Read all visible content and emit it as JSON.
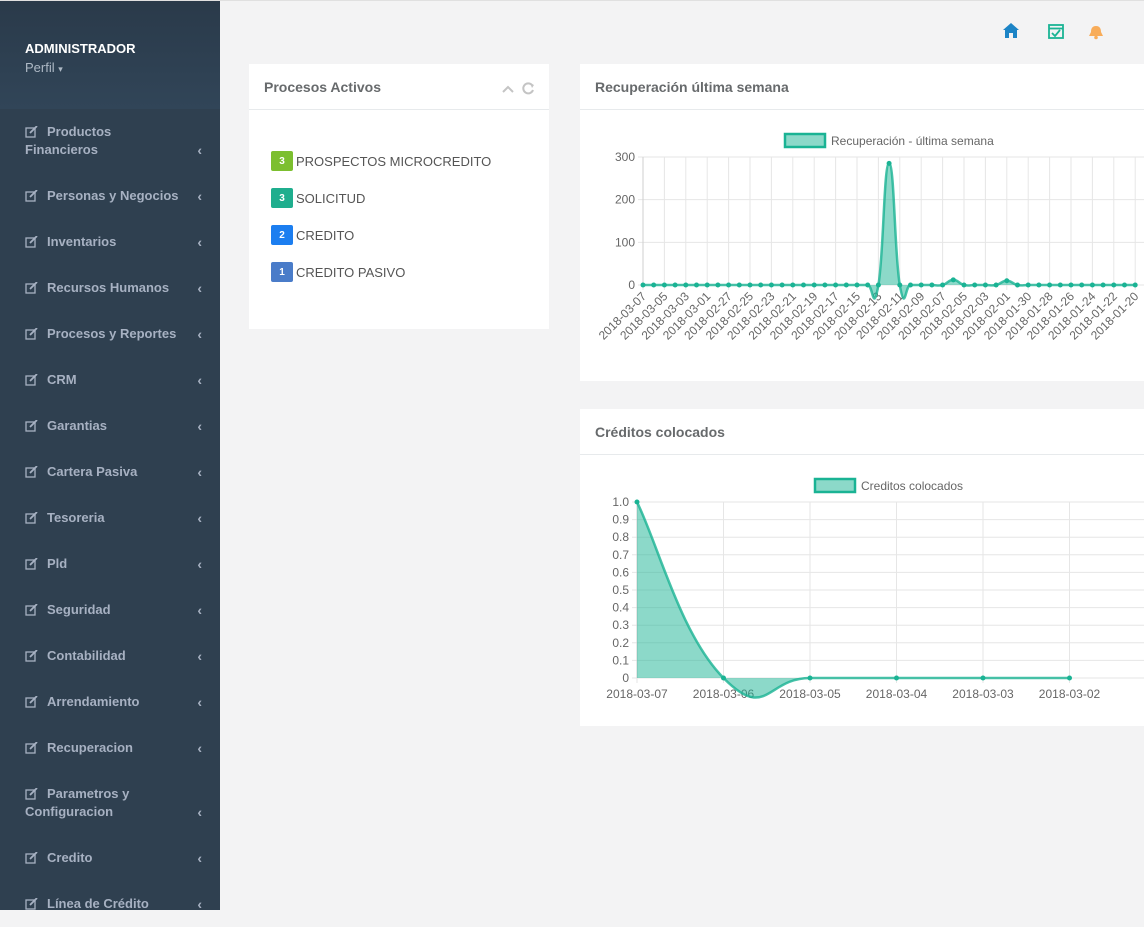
{
  "sidebar": {
    "user": "ADMINISTRADOR",
    "profile": "Perfil",
    "menu": [
      "Productos Financieros",
      "Personas y Negocios",
      "Inventarios",
      "Recursos Humanos",
      "Procesos y Reportes",
      "CRM",
      "Garantias",
      "Cartera Pasiva",
      "Tesoreria",
      "Pld",
      "Seguridad",
      "Contabilidad",
      "Arrendamiento",
      "Recuperacion",
      "Parametros y Configuracion",
      "Credito",
      "Línea de Crédito"
    ]
  },
  "processes": {
    "title": "Procesos Activos",
    "items": [
      {
        "count": 3,
        "label": "PROSPECTOS MICROCREDITO",
        "color": "#7cbf2f"
      },
      {
        "count": 3,
        "label": "SOLICITUD",
        "color": "#1fae8e"
      },
      {
        "count": 2,
        "label": "CREDITO",
        "color": "#1c7ef0"
      },
      {
        "count": 1,
        "label": "CREDITO PASIVO",
        "color": "#4a7cc9"
      }
    ]
  },
  "chart_data": [
    {
      "type": "area",
      "title": "Recuperación última semana",
      "categories": [
        "2018-03-07",
        null,
        "2018-03-05",
        null,
        "2018-03-03",
        null,
        "2018-03-01",
        null,
        "2018-02-27",
        null,
        "2018-02-25",
        null,
        "2018-02-23",
        null,
        "2018-02-21",
        null,
        "2018-02-19",
        null,
        "2018-02-17",
        null,
        "2018-02-15",
        null,
        "2018-02-13",
        null,
        "2018-02-11",
        null,
        "2018-02-09",
        null,
        "2018-02-07",
        null,
        "2018-02-05",
        null,
        "2018-02-03",
        null,
        "2018-02-01",
        null,
        "2018-01-30",
        null,
        "2018-01-28",
        null,
        "2018-01-26",
        null,
        "2018-01-24",
        null,
        "2018-01-22",
        null,
        "2018-01-20"
      ],
      "series": [
        {
          "name": "Recuperación - última semana",
          "color": "#1ab394",
          "values": [
            0,
            0,
            0,
            0,
            0,
            0,
            0,
            0,
            0,
            0,
            0,
            0,
            0,
            0,
            0,
            0,
            0,
            0,
            0,
            0,
            0,
            0,
            0,
            285,
            0,
            0,
            0,
            0,
            0,
            12,
            0,
            0,
            0,
            0,
            10,
            0,
            0,
            0,
            0,
            0,
            0,
            0,
            0,
            0,
            0,
            0,
            0
          ]
        }
      ],
      "ylim": [
        0,
        300
      ],
      "yticks": [
        0,
        100,
        200,
        300
      ],
      "grid": true,
      "legend": "top"
    },
    {
      "type": "area",
      "title": "Créditos colocados",
      "categories": [
        "2018-03-07",
        "2018-03-06",
        "2018-03-05",
        "2018-03-04",
        "2018-03-03",
        "2018-03-02"
      ],
      "series": [
        {
          "name": "Creditos colocados",
          "color": "#1ab394",
          "values": [
            1,
            0,
            0,
            0,
            0,
            0
          ]
        }
      ],
      "ylim": [
        0,
        1
      ],
      "yticks": [
        0,
        0.1,
        0.2,
        0.3,
        0.4,
        0.5,
        0.6,
        0.7,
        0.8,
        0.9,
        {
          "value": 1,
          "label": "1.0"
        }
      ],
      "grid": true,
      "legend": "top"
    }
  ]
}
